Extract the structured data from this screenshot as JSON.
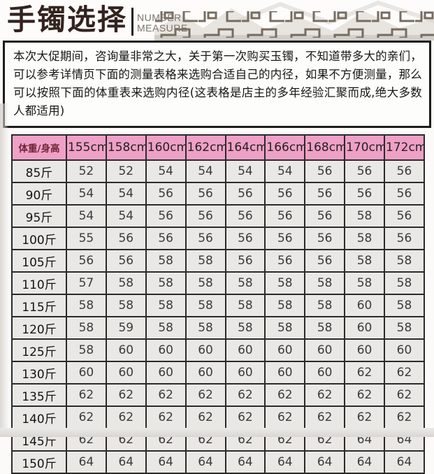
{
  "header": {
    "title": "手镯选择",
    "subtitle_line1": "NUMBER",
    "subtitle_line2": "MEASURE"
  },
  "intro": {
    "text": "本次大促期间，咨询量非常之大，关于第一次购买玉镯，不知道带多大的亲们，可以参考详情页下面的测量表格来选购合适自己的内径，如果不方便测量，那么可以按照下面的体重表来选购内径(这表格是店主的多年经验汇聚而成,绝大多数人都适用)"
  },
  "table": {
    "corner_header": "体重/身高",
    "columns": [
      "155cm",
      "158cm",
      "160cm",
      "162cm",
      "164cm",
      "166cm",
      "168cm",
      "170cm",
      "172cm"
    ],
    "rows": [
      {
        "label": "85斤",
        "values": [
          52,
          52,
          54,
          54,
          54,
          54,
          56,
          56,
          56
        ]
      },
      {
        "label": "90斤",
        "values": [
          54,
          54,
          56,
          56,
          56,
          56,
          56,
          56,
          56
        ]
      },
      {
        "label": "95斤",
        "values": [
          54,
          54,
          56,
          56,
          56,
          56,
          56,
          58,
          56
        ]
      },
      {
        "label": "100斤",
        "values": [
          55,
          56,
          56,
          56,
          56,
          56,
          56,
          58,
          56
        ]
      },
      {
        "label": "105斤",
        "values": [
          56,
          56,
          58,
          58,
          56,
          56,
          56,
          58,
          58
        ]
      },
      {
        "label": "110斤",
        "values": [
          57,
          58,
          58,
          58,
          58,
          58,
          58,
          58,
          58
        ]
      },
      {
        "label": "115斤",
        "values": [
          58,
          58,
          58,
          58,
          58,
          58,
          58,
          60,
          58
        ]
      },
      {
        "label": "120斤",
        "values": [
          58,
          59,
          58,
          58,
          58,
          58,
          58,
          60,
          58
        ]
      },
      {
        "label": "125斤",
        "values": [
          58,
          60,
          60,
          60,
          60,
          60,
          60,
          60,
          60
        ]
      },
      {
        "label": "130斤",
        "values": [
          60,
          60,
          60,
          60,
          60,
          60,
          60,
          62,
          62
        ]
      },
      {
        "label": "135斤",
        "values": [
          62,
          62,
          62,
          62,
          62,
          62,
          62,
          62,
          62
        ]
      },
      {
        "label": "140斤",
        "values": [
          62,
          62,
          62,
          62,
          62,
          62,
          62,
          62,
          62
        ]
      },
      {
        "label": "145斤",
        "values": [
          62,
          62,
          62,
          62,
          62,
          62,
          62,
          64,
          64
        ]
      },
      {
        "label": "150斤",
        "values": [
          64,
          64,
          64,
          64,
          64,
          64,
          64,
          64,
          64
        ]
      }
    ]
  },
  "colors": {
    "header_pink": "#efa0c6",
    "cell_background": "#e9e8e5",
    "table_border": "#2b2b2b",
    "title_color": "#33231f",
    "corner_text": "#6e2637",
    "subtitle_gray": "#7d746b"
  }
}
